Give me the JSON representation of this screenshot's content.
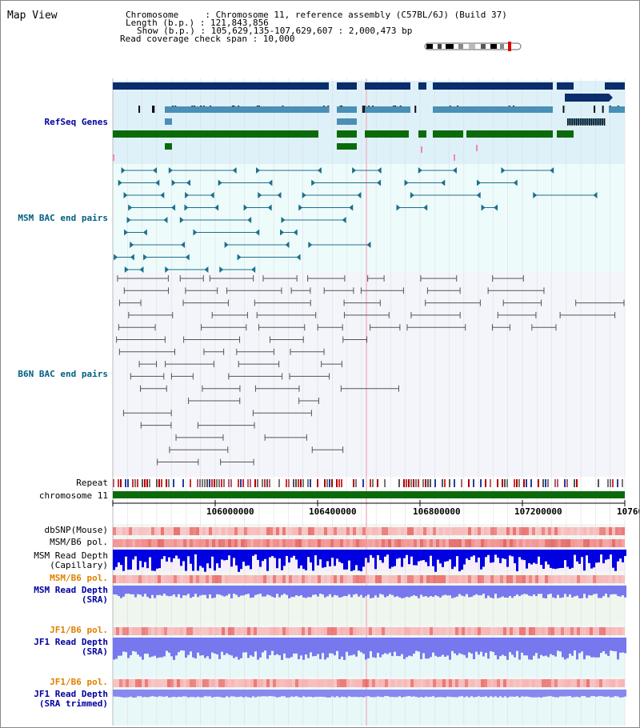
{
  "header": {
    "title": "Map View",
    "chromosome_line": "Chromosome     : Chromosome 11, reference assembly (C57BL/6J) (Build 37)",
    "length_line": "Length (b.p.) : 121,843,856",
    "show_line": "Show (b.p.) : 105,629,135-107,629,607 : 2,000,473 bp",
    "coverage_line": "Read coverage check span : 10,000"
  },
  "tracks": {
    "refseq": "RefSeq Genes",
    "msm_bac": "MSM BAC end pairs",
    "b6n_bac": "B6N BAC end pairs",
    "repeat": "Repeat",
    "chromosome": "chromosome 11",
    "dbsnp": "dbSNP(Mouse)",
    "msm_b6_pol_1": "MSM/B6 pol.",
    "msm_depth_cap_1": "MSM Read Depth",
    "msm_depth_cap_2": "(Capillary)",
    "msm_b6_pol_2": "MSM/B6 pol.",
    "msm_depth_sra_1": "MSM Read Depth",
    "msm_depth_sra_2": "(SRA)",
    "jf1_b6_pol_1": "JF1/B6 pol.",
    "jf1_depth_sra_1": "JF1 Read Depth",
    "jf1_depth_sra_2": "(SRA)",
    "jf1_b6_pol_2": "JF1/B6 pol.",
    "jf1_depth_trim_1": "JF1 Read Depth",
    "jf1_depth_trim_2": "(SRA trimmed)"
  },
  "axis": {
    "ticks": [
      "106000000",
      "106400000",
      "106800000",
      "107200000",
      "10760"
    ]
  },
  "colors": {
    "navy_label": "#0000a0",
    "teal_label": "#006080",
    "orange_label": "#e08000",
    "gene_dark": "#0b2d6b",
    "gene_mid": "#4a8fb5",
    "gene_green": "#0b6b0b",
    "bac_teal": "#1d6f8c",
    "bac_gray": "#555555",
    "depth_blue": "#0000e0",
    "depth_light": "#7777ee"
  }
}
